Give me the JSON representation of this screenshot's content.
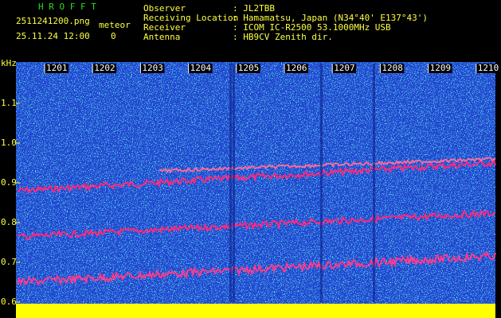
{
  "header": {
    "title": "H R O F F T",
    "filename": "2511241200.png",
    "mode": "meteor",
    "datetime": "25.11.24 12:00",
    "count": "0"
  },
  "info": [
    {
      "label": "Observer",
      "value": ": JL2TBB"
    },
    {
      "label": "Receiving Location",
      "value": ": Hamamatsu, Japan (N34°40' E137°43')"
    },
    {
      "label": "Receiver",
      "value": ": ICOM IC-R2500 53.1000MHz USB"
    },
    {
      "label": "Antenna",
      "value": ": HB9CV Zenith dir."
    }
  ],
  "axis": {
    "unit": "kHz",
    "y_labels": [
      "1.1",
      "1.0",
      "0.9",
      "0.8",
      "0.7",
      "0.6"
    ],
    "x_labels": [
      "1201",
      "1202",
      "1203",
      "1204",
      "1205",
      "1206",
      "1207",
      "1208",
      "1209",
      "1210"
    ]
  }
}
